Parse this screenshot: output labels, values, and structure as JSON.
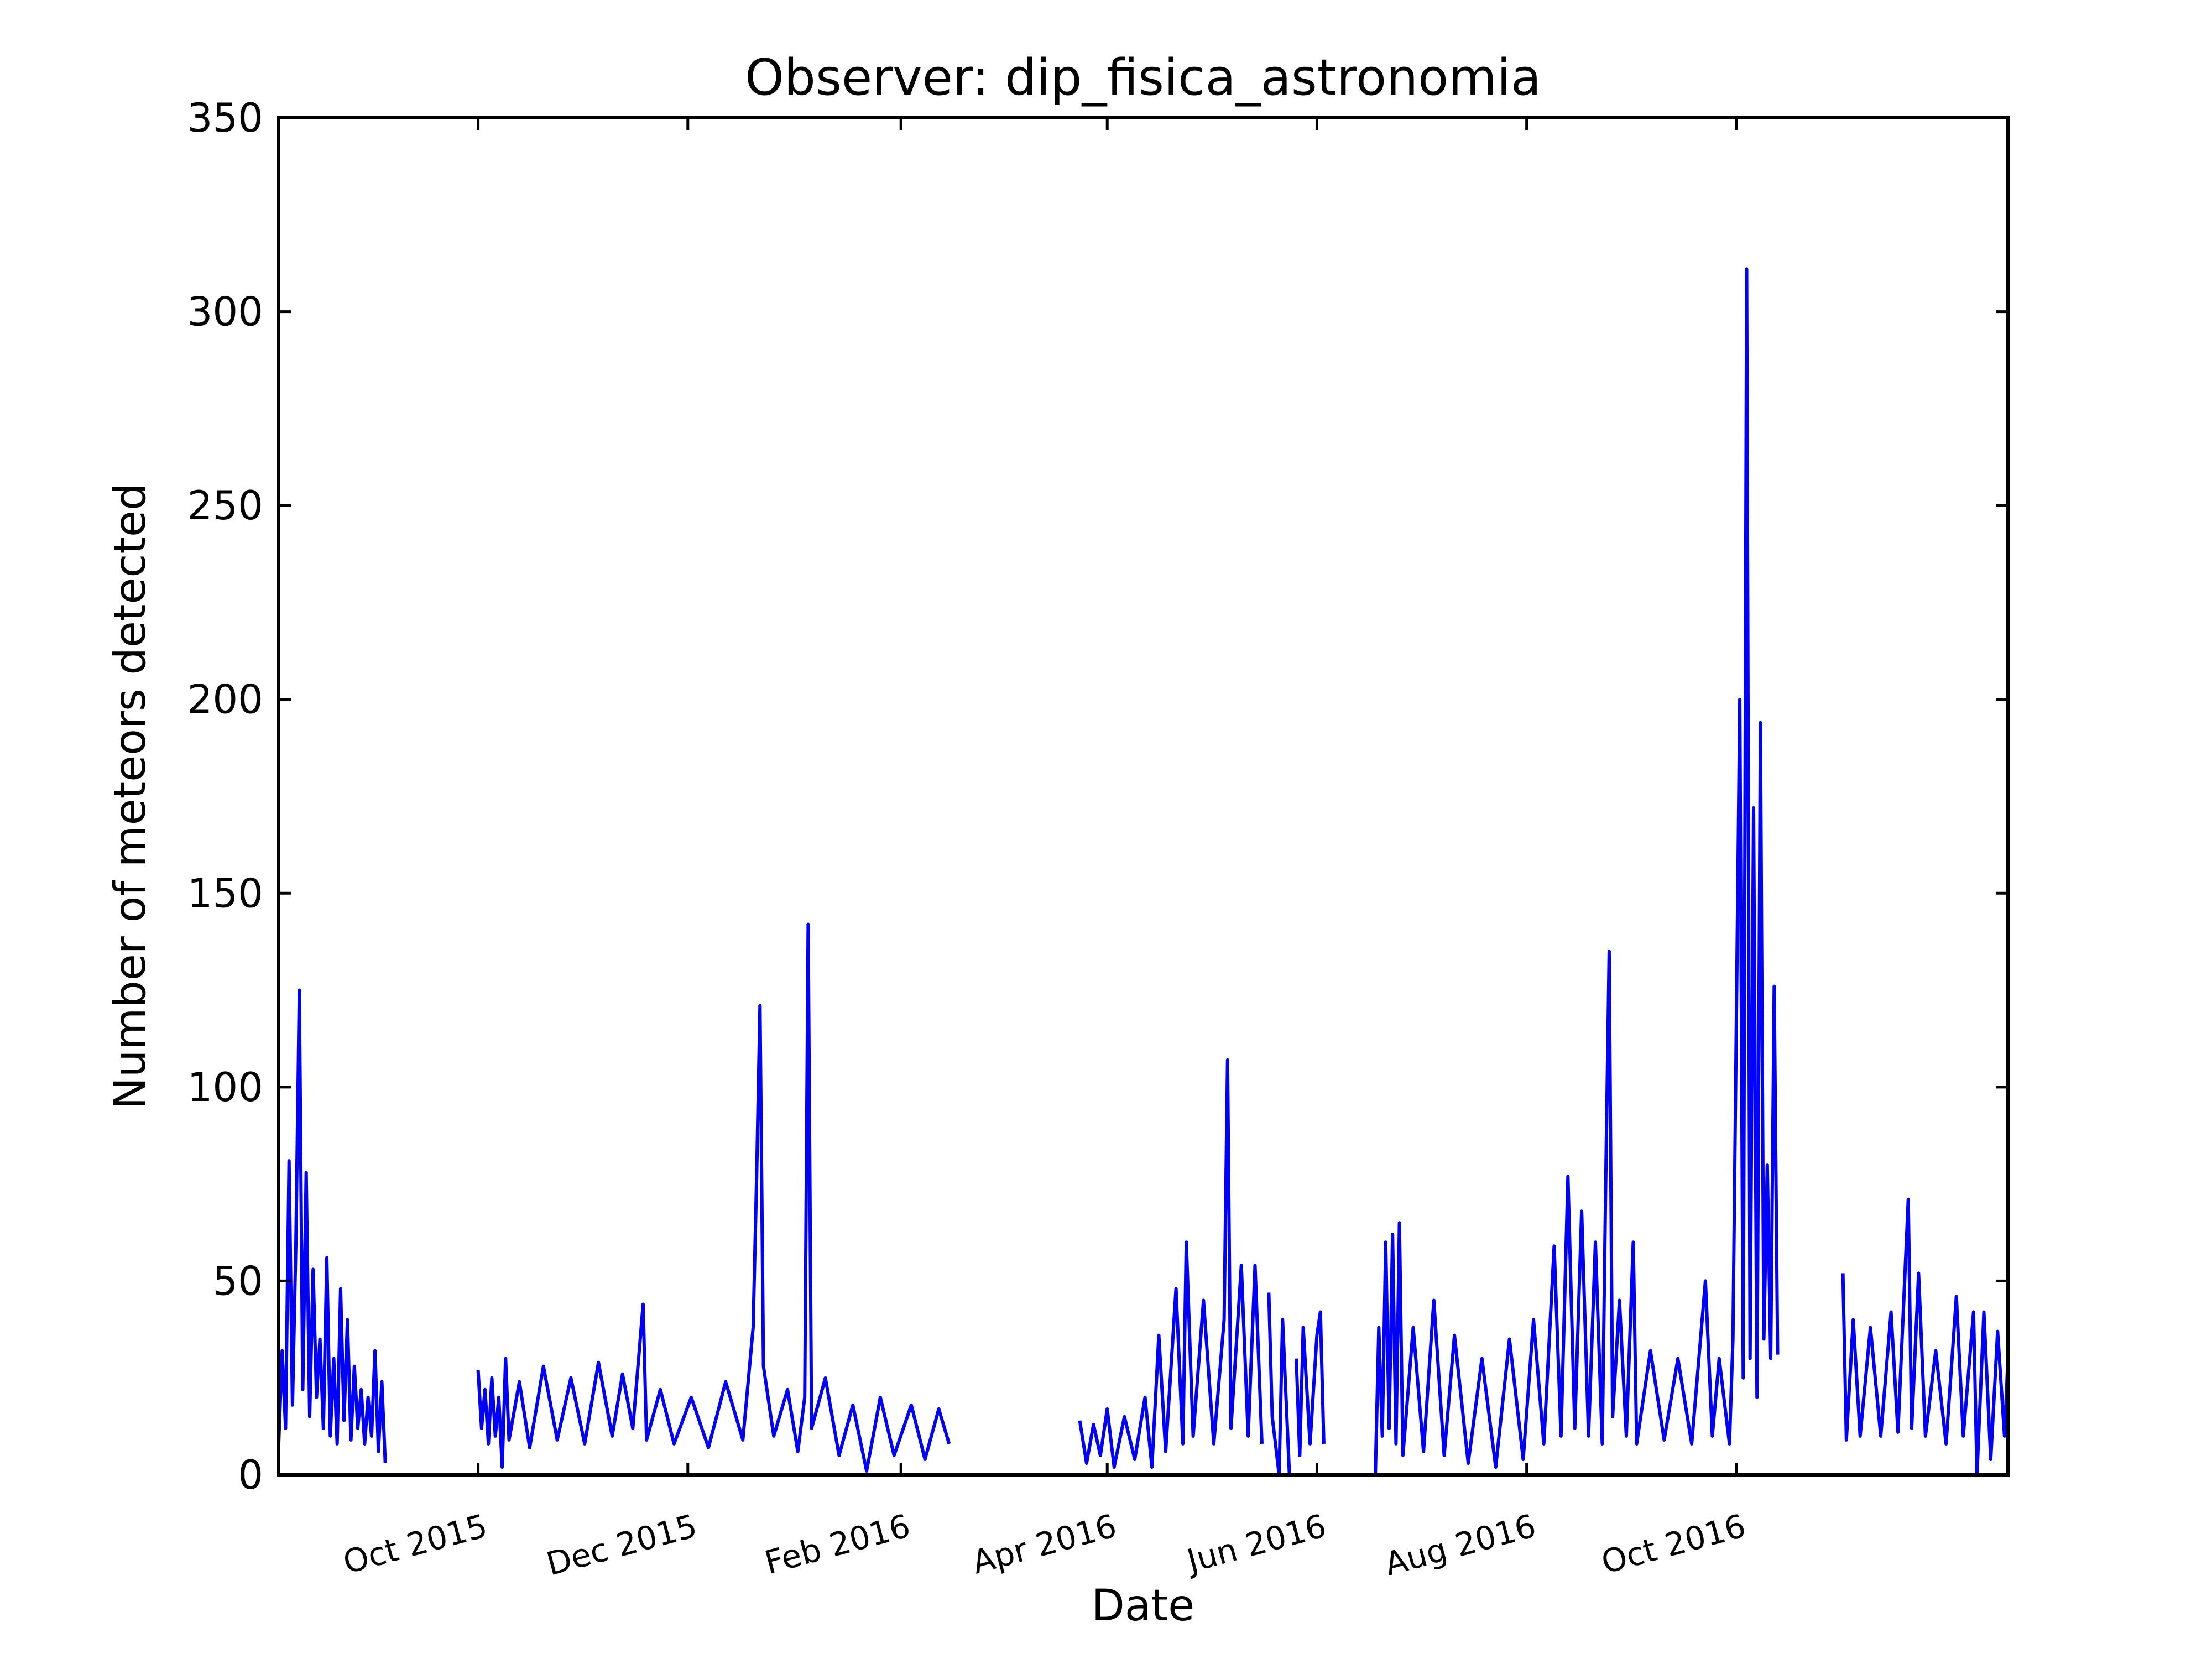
{
  "chart_data": {
    "type": "line",
    "title": "Observer: dip_fisica_astronomia",
    "xlabel": "Date",
    "ylabel": "Number of meteors detected",
    "xlim": [
      "2015-08-04",
      "2016-12-19"
    ],
    "ylim": [
      0,
      350
    ],
    "yticks": [
      0,
      50,
      100,
      150,
      200,
      250,
      300,
      350
    ],
    "xticks": [
      {
        "date": "2015-10-01",
        "label": "Oct 2015"
      },
      {
        "date": "2015-12-01",
        "label": "Dec 2015"
      },
      {
        "date": "2016-02-01",
        "label": "Feb 2016"
      },
      {
        "date": "2016-04-01",
        "label": "Apr 2016"
      },
      {
        "date": "2016-06-01",
        "label": "Jun 2016"
      },
      {
        "date": "2016-08-01",
        "label": "Aug 2016"
      },
      {
        "date": "2016-10-01",
        "label": "Oct 2016"
      }
    ],
    "grid": false,
    "series_color": "#0000ff",
    "series": [
      {
        "points": [
          [
            "2015-08-04",
            8
          ],
          [
            "2015-08-05",
            32
          ],
          [
            "2015-08-06",
            12
          ],
          [
            "2015-08-07",
            81
          ],
          [
            "2015-08-08",
            18
          ],
          [
            "2015-08-09",
            60
          ],
          [
            "2015-08-10",
            125
          ],
          [
            "2015-08-11",
            22
          ],
          [
            "2015-08-12",
            78
          ],
          [
            "2015-08-13",
            15
          ],
          [
            "2015-08-14",
            53
          ],
          [
            "2015-08-15",
            20
          ],
          [
            "2015-08-16",
            35
          ],
          [
            "2015-08-17",
            12
          ],
          [
            "2015-08-18",
            56
          ],
          [
            "2015-08-19",
            10
          ],
          [
            "2015-08-20",
            30
          ],
          [
            "2015-08-21",
            8
          ],
          [
            "2015-08-22",
            48
          ],
          [
            "2015-08-23",
            14
          ],
          [
            "2015-08-24",
            40
          ],
          [
            "2015-08-25",
            9
          ],
          [
            "2015-08-26",
            28
          ],
          [
            "2015-08-27",
            12
          ],
          [
            "2015-08-28",
            22
          ],
          [
            "2015-08-29",
            8
          ],
          [
            "2015-08-30",
            20
          ],
          [
            "2015-08-31",
            10
          ],
          [
            "2015-09-01",
            32
          ],
          [
            "2015-09-02",
            6
          ],
          [
            "2015-09-03",
            24
          ],
          [
            "2015-09-04",
            3
          ]
        ]
      },
      {
        "points": [
          [
            "2015-10-01",
            27
          ],
          [
            "2015-10-02",
            12
          ],
          [
            "2015-10-03",
            22
          ],
          [
            "2015-10-04",
            8
          ],
          [
            "2015-10-05",
            25
          ],
          [
            "2015-10-06",
            10
          ],
          [
            "2015-10-07",
            20
          ],
          [
            "2015-10-08",
            2
          ],
          [
            "2015-10-09",
            30
          ],
          [
            "2015-10-10",
            9
          ],
          [
            "2015-10-13",
            24
          ],
          [
            "2015-10-16",
            7
          ],
          [
            "2015-10-20",
            28
          ],
          [
            "2015-10-24",
            9
          ],
          [
            "2015-10-28",
            25
          ],
          [
            "2015-11-01",
            8
          ],
          [
            "2015-11-05",
            29
          ],
          [
            "2015-11-09",
            10
          ],
          [
            "2015-11-12",
            26
          ],
          [
            "2015-11-15",
            12
          ],
          [
            "2015-11-18",
            44
          ],
          [
            "2015-11-19",
            9
          ],
          [
            "2015-11-23",
            22
          ],
          [
            "2015-11-27",
            8
          ],
          [
            "2015-12-02",
            20
          ],
          [
            "2015-12-07",
            7
          ],
          [
            "2015-12-12",
            24
          ],
          [
            "2015-12-17",
            9
          ],
          [
            "2015-12-20",
            38
          ],
          [
            "2015-12-21",
            76
          ],
          [
            "2015-12-22",
            121
          ],
          [
            "2015-12-23",
            28
          ],
          [
            "2015-12-26",
            10
          ],
          [
            "2015-12-30",
            22
          ],
          [
            "2016-01-02",
            6
          ],
          [
            "2016-01-04",
            20
          ],
          [
            "2016-01-05",
            142
          ],
          [
            "2016-01-06",
            12
          ],
          [
            "2016-01-10",
            25
          ],
          [
            "2016-01-14",
            5
          ],
          [
            "2016-01-18",
            18
          ],
          [
            "2016-01-22",
            1
          ],
          [
            "2016-01-26",
            20
          ],
          [
            "2016-01-30",
            5
          ],
          [
            "2016-02-04",
            18
          ],
          [
            "2016-02-08",
            4
          ],
          [
            "2016-02-12",
            17
          ],
          [
            "2016-02-15",
            8
          ]
        ]
      },
      {
        "points": [
          [
            "2016-03-24",
            14
          ],
          [
            "2016-03-26",
            3
          ],
          [
            "2016-03-28",
            13
          ],
          [
            "2016-03-30",
            5
          ],
          [
            "2016-04-01",
            17
          ],
          [
            "2016-04-03",
            2
          ],
          [
            "2016-04-06",
            15
          ],
          [
            "2016-04-09",
            4
          ],
          [
            "2016-04-12",
            20
          ],
          [
            "2016-04-14",
            2
          ],
          [
            "2016-04-16",
            36
          ],
          [
            "2016-04-18",
            6
          ],
          [
            "2016-04-21",
            48
          ],
          [
            "2016-04-23",
            8
          ],
          [
            "2016-04-24",
            60
          ],
          [
            "2016-04-26",
            10
          ],
          [
            "2016-04-29",
            45
          ],
          [
            "2016-05-02",
            8
          ],
          [
            "2016-05-05",
            40
          ],
          [
            "2016-05-06",
            107
          ],
          [
            "2016-05-07",
            12
          ],
          [
            "2016-05-10",
            54
          ],
          [
            "2016-05-12",
            10
          ],
          [
            "2016-05-14",
            54
          ],
          [
            "2016-05-16",
            8
          ]
        ]
      },
      {
        "points": [
          [
            "2016-05-18",
            47
          ],
          [
            "2016-05-19",
            15
          ],
          [
            "2016-05-21",
            0
          ],
          [
            "2016-05-22",
            40
          ],
          [
            "2016-05-24",
            0
          ]
        ]
      },
      {
        "points": [
          [
            "2016-05-26",
            30
          ],
          [
            "2016-05-27",
            5
          ],
          [
            "2016-05-28",
            38
          ],
          [
            "2016-05-30",
            8
          ],
          [
            "2016-06-01",
            36
          ],
          [
            "2016-06-02",
            42
          ],
          [
            "2016-06-03",
            8
          ]
        ]
      },
      {
        "points": [
          [
            "2016-06-18",
            0
          ],
          [
            "2016-06-19",
            38
          ],
          [
            "2016-06-20",
            10
          ],
          [
            "2016-06-21",
            60
          ],
          [
            "2016-06-22",
            12
          ],
          [
            "2016-06-23",
            62
          ],
          [
            "2016-06-24",
            8
          ],
          [
            "2016-06-25",
            65
          ],
          [
            "2016-06-26",
            5
          ],
          [
            "2016-06-29",
            38
          ],
          [
            "2016-07-02",
            6
          ],
          [
            "2016-07-05",
            45
          ],
          [
            "2016-07-08",
            5
          ],
          [
            "2016-07-11",
            36
          ],
          [
            "2016-07-15",
            3
          ],
          [
            "2016-07-19",
            30
          ],
          [
            "2016-07-23",
            2
          ],
          [
            "2016-07-27",
            35
          ],
          [
            "2016-07-31",
            4
          ],
          [
            "2016-08-03",
            40
          ],
          [
            "2016-08-06",
            8
          ],
          [
            "2016-08-09",
            59
          ],
          [
            "2016-08-11",
            10
          ],
          [
            "2016-08-13",
            77
          ],
          [
            "2016-08-15",
            12
          ],
          [
            "2016-08-17",
            68
          ],
          [
            "2016-08-19",
            10
          ],
          [
            "2016-08-21",
            60
          ],
          [
            "2016-08-23",
            8
          ],
          [
            "2016-08-24",
            75
          ],
          [
            "2016-08-25",
            135
          ],
          [
            "2016-08-26",
            15
          ],
          [
            "2016-08-28",
            45
          ],
          [
            "2016-08-30",
            10
          ],
          [
            "2016-09-01",
            60
          ],
          [
            "2016-09-02",
            8
          ],
          [
            "2016-09-06",
            32
          ],
          [
            "2016-09-10",
            9
          ],
          [
            "2016-09-14",
            30
          ],
          [
            "2016-09-18",
            8
          ],
          [
            "2016-09-22",
            50
          ],
          [
            "2016-09-24",
            10
          ],
          [
            "2016-09-26",
            30
          ],
          [
            "2016-09-29",
            8
          ],
          [
            "2016-09-30",
            35
          ],
          [
            "2016-10-02",
            200
          ],
          [
            "2016-10-03",
            25
          ],
          [
            "2016-10-04",
            311
          ],
          [
            "2016-10-05",
            30
          ],
          [
            "2016-10-06",
            172
          ],
          [
            "2016-10-07",
            20
          ],
          [
            "2016-10-08",
            194
          ],
          [
            "2016-10-09",
            35
          ],
          [
            "2016-10-10",
            80
          ],
          [
            "2016-10-11",
            30
          ],
          [
            "2016-10-12",
            126
          ],
          [
            "2016-10-13",
            31
          ]
        ]
      },
      {
        "points": [
          [
            "2016-11-01",
            52
          ],
          [
            "2016-11-02",
            9
          ],
          [
            "2016-11-04",
            40
          ],
          [
            "2016-11-06",
            10
          ],
          [
            "2016-11-09",
            38
          ],
          [
            "2016-11-12",
            10
          ],
          [
            "2016-11-15",
            42
          ],
          [
            "2016-11-17",
            11
          ],
          [
            "2016-11-20",
            71
          ],
          [
            "2016-11-21",
            12
          ],
          [
            "2016-11-23",
            52
          ],
          [
            "2016-11-25",
            10
          ],
          [
            "2016-11-28",
            32
          ],
          [
            "2016-12-01",
            8
          ],
          [
            "2016-12-04",
            46
          ],
          [
            "2016-12-06",
            10
          ],
          [
            "2016-12-09",
            42
          ],
          [
            "2016-12-10",
            0
          ],
          [
            "2016-12-12",
            42
          ],
          [
            "2016-12-14",
            4
          ],
          [
            "2016-12-16",
            37
          ],
          [
            "2016-12-18",
            10
          ],
          [
            "2016-12-19",
            30
          ]
        ]
      }
    ]
  }
}
